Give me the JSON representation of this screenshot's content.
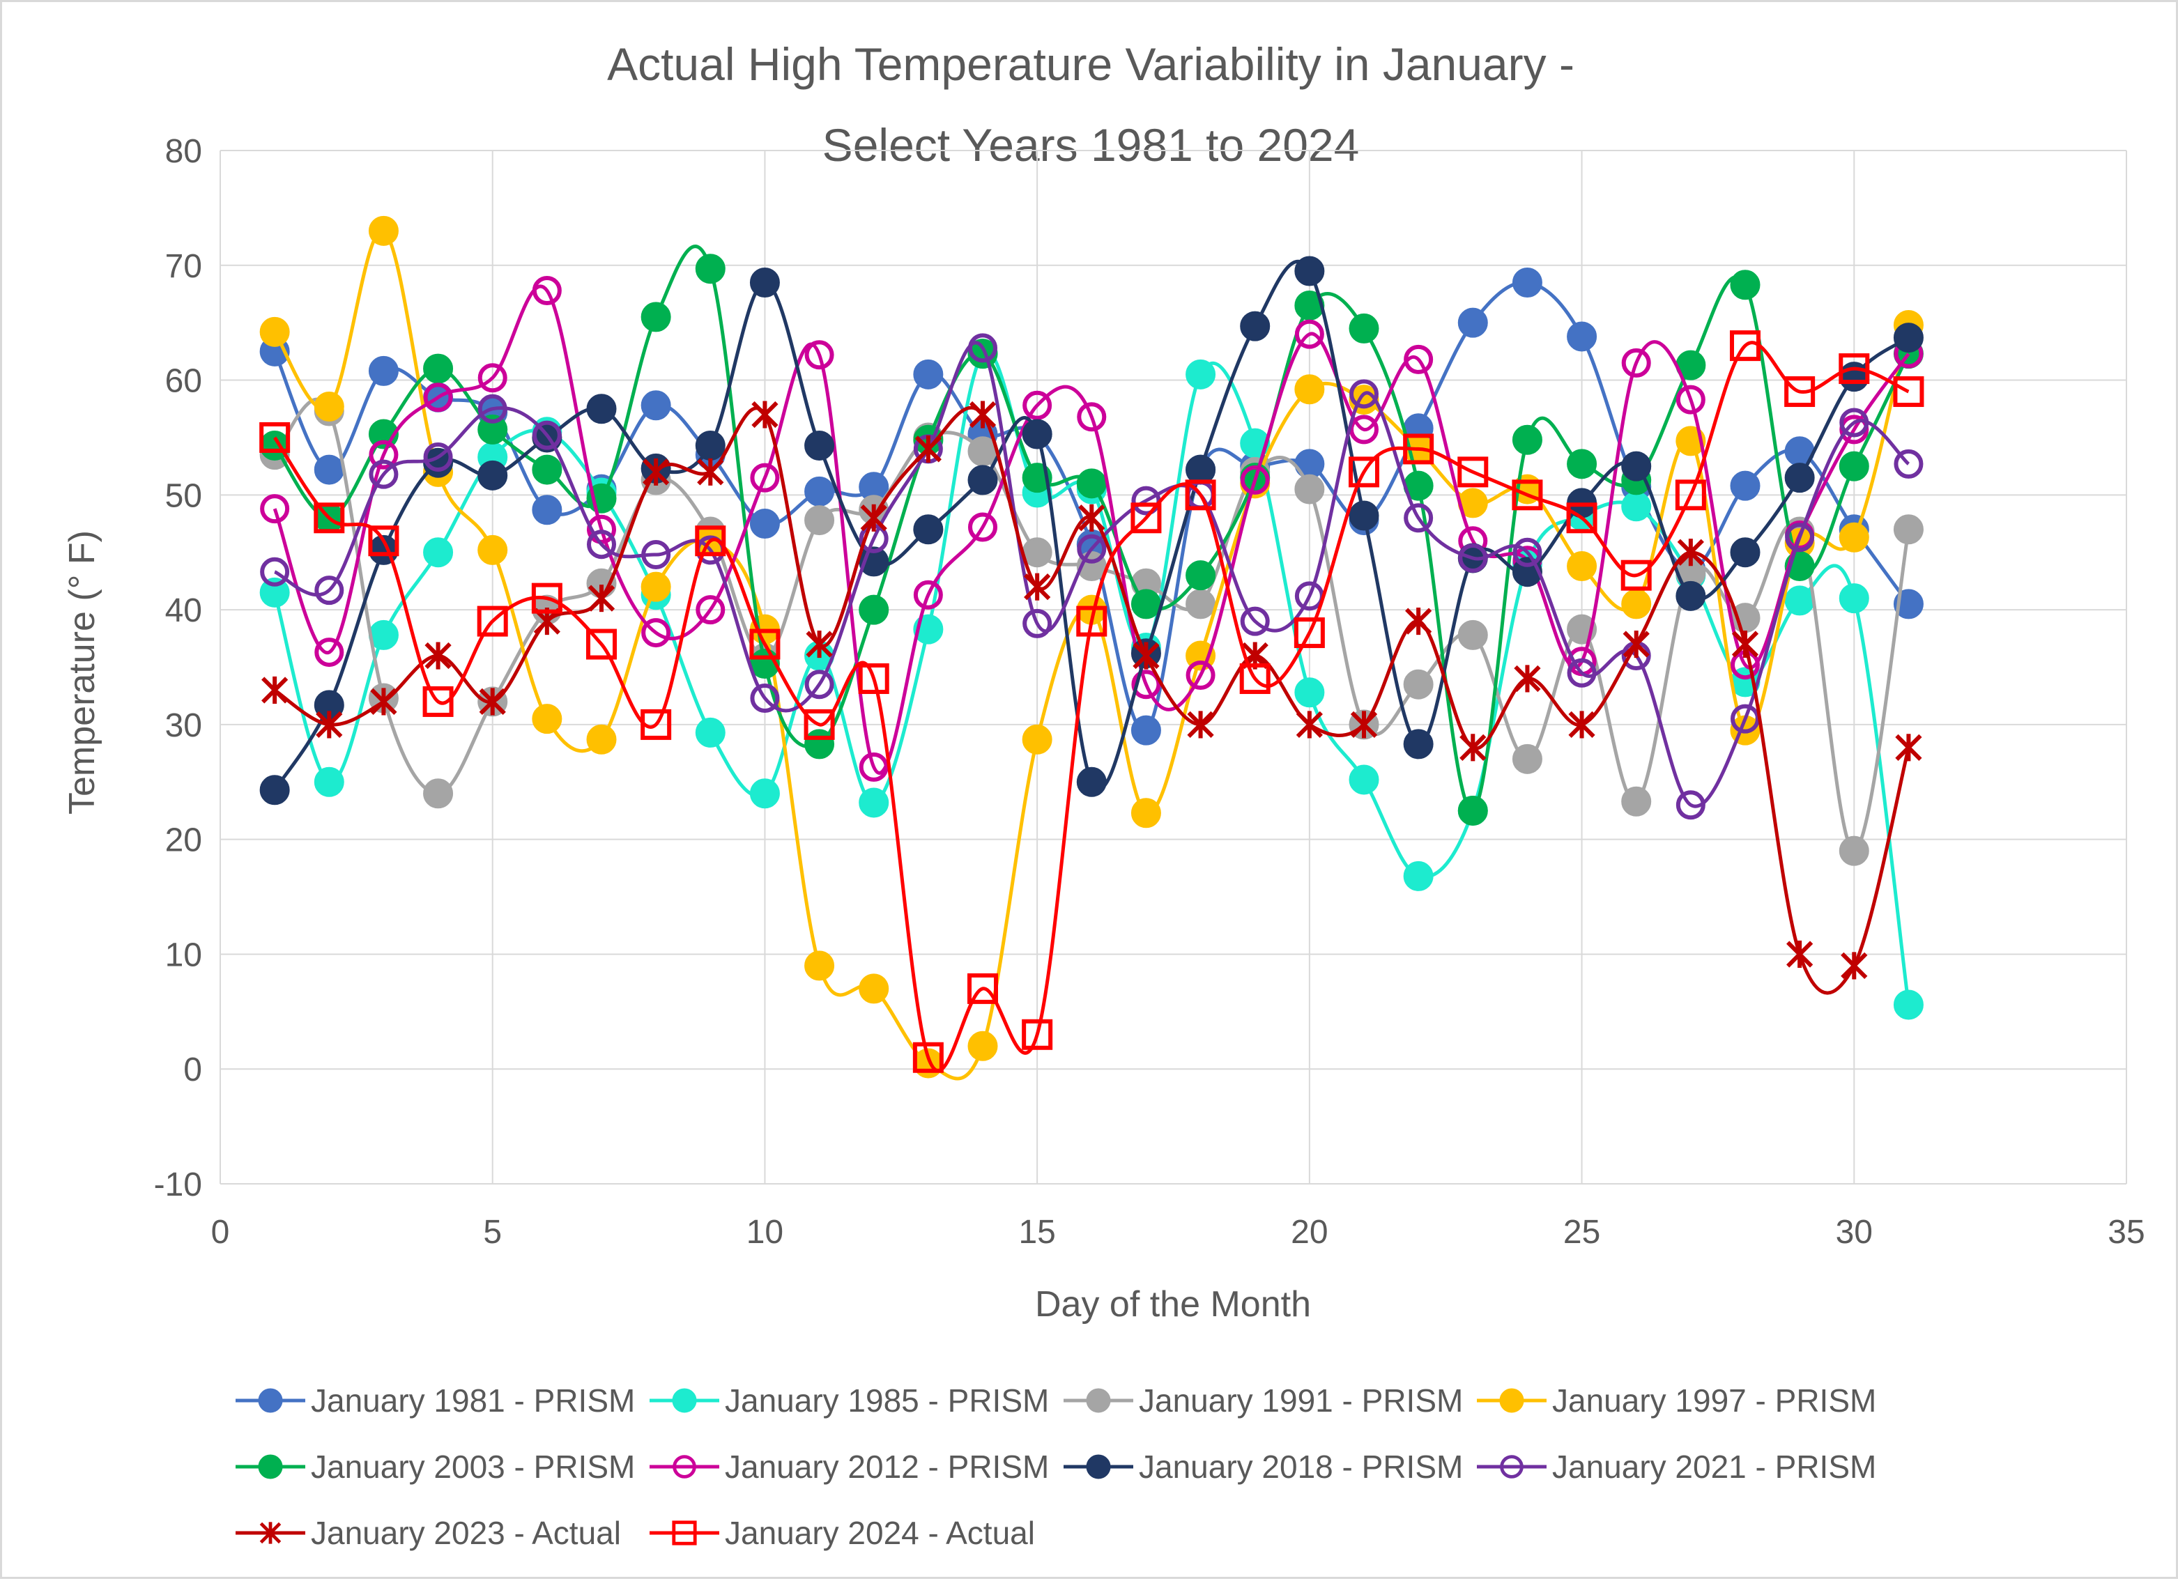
{
  "chart_data": {
    "type": "line",
    "title": "Actual High Temperature Variability in January -",
    "title_line2": "Select Years 1981 to 2024",
    "xlabel": "Day of the Month",
    "ylabel": "Temperature (° F)",
    "xlim": [
      0,
      35
    ],
    "ylim": [
      -10,
      80
    ],
    "xticks": [
      0,
      5,
      10,
      15,
      20,
      25,
      30,
      35
    ],
    "yticks": [
      -10,
      0,
      10,
      20,
      30,
      40,
      50,
      60,
      70,
      80
    ],
    "grid": true,
    "smooth": true,
    "legend_position": "bottom",
    "x": [
      1,
      2,
      3,
      4,
      5,
      6,
      7,
      8,
      9,
      10,
      11,
      12,
      13,
      14,
      15,
      16,
      17,
      18,
      19,
      20,
      21,
      22,
      23,
      24,
      25,
      26,
      27,
      28,
      29,
      30,
      31
    ],
    "series": [
      {
        "name": "January 1981 - PRISM",
        "color": "#4472C4",
        "marker": "circle",
        "values": [
          62.5,
          52.2,
          60.8,
          58.5,
          57.2,
          48.7,
          50.5,
          57.8,
          53.5,
          47.5,
          50.3,
          50.7,
          60.5,
          55.3,
          55.3,
          45.7,
          29.5,
          52.2,
          52.5,
          52.7,
          47.8,
          55.8,
          65.0,
          68.5,
          63.8,
          50.7,
          43.5,
          50.8,
          53.8,
          47.0,
          40.5
        ]
      },
      {
        "name": "January 1985 - PRISM",
        "color": "#1DEBCF",
        "marker": "circle",
        "values": [
          41.5,
          25.0,
          37.8,
          45.0,
          53.3,
          55.5,
          50.2,
          41.3,
          29.3,
          24.0,
          36.0,
          23.2,
          38.3,
          62.3,
          50.2,
          50.5,
          36.7,
          60.5,
          54.5,
          32.8,
          25.2,
          16.8,
          22.5,
          44.0,
          48.2,
          49.0,
          43.0,
          33.7,
          40.8,
          41.0,
          5.6
        ]
      },
      {
        "name": "January 1991 - PRISM",
        "color": "#A5A5A5",
        "marker": "circle",
        "values": [
          53.5,
          57.3,
          32.3,
          24.0,
          32.0,
          40.0,
          42.3,
          51.3,
          46.8,
          35.8,
          47.8,
          48.7,
          55.0,
          53.8,
          45.0,
          43.8,
          42.3,
          40.5,
          52.0,
          50.5,
          30.0,
          33.5,
          37.8,
          27.0,
          38.3,
          23.3,
          43.2,
          39.3,
          46.8,
          19.0,
          47.0
        ]
      },
      {
        "name": "January 1997 - PRISM",
        "color": "#FFC000",
        "marker": "circle",
        "values": [
          64.2,
          57.7,
          73.0,
          52.0,
          45.2,
          30.5,
          28.7,
          42.0,
          46.0,
          38.3,
          9.0,
          7.0,
          0.5,
          2.0,
          28.7,
          40.0,
          22.3,
          36.0,
          51.0,
          59.2,
          58.3,
          54.0,
          49.3,
          50.5,
          43.8,
          40.5,
          54.7,
          29.5,
          45.8,
          46.3,
          64.8
        ]
      },
      {
        "name": "January 2003 - PRISM",
        "color": "#00B050",
        "marker": "circle",
        "values": [
          54.3,
          48.0,
          55.3,
          61.0,
          55.7,
          52.2,
          49.7,
          65.5,
          69.7,
          35.3,
          28.3,
          40.0,
          54.8,
          62.3,
          51.5,
          51.0,
          40.5,
          43.0,
          51.5,
          66.5,
          64.5,
          50.8,
          22.5,
          54.8,
          52.7,
          51.3,
          61.3,
          68.3,
          43.8,
          52.5,
          62.3
        ]
      },
      {
        "name": "January 2012 - PRISM",
        "color": "#CC0099",
        "marker": "hollow-circle",
        "values": [
          48.8,
          36.3,
          53.5,
          58.5,
          60.2,
          67.8,
          47.0,
          38.0,
          40.0,
          51.5,
          62.2,
          26.3,
          41.3,
          47.2,
          57.8,
          56.8,
          33.5,
          34.3,
          51.3,
          64.0,
          55.7,
          61.8,
          46.0,
          44.3,
          35.5,
          61.5,
          58.3,
          35.2,
          46.5,
          55.7,
          62.3
        ]
      },
      {
        "name": "January 2018 - PRISM",
        "color": "#203864",
        "marker": "circle",
        "values": [
          24.3,
          31.7,
          45.2,
          52.8,
          51.7,
          55.0,
          57.5,
          52.3,
          54.3,
          68.5,
          54.3,
          44.2,
          47.0,
          51.3,
          55.3,
          25.0,
          36.2,
          52.2,
          64.7,
          69.5,
          48.2,
          28.3,
          44.5,
          43.3,
          49.3,
          52.5,
          41.2,
          45.0,
          51.5,
          60.3,
          63.7
        ]
      },
      {
        "name": "January 2021 - PRISM",
        "color": "#7030A0",
        "marker": "hollow-circle",
        "values": [
          43.3,
          41.7,
          51.8,
          53.3,
          57.5,
          55.2,
          45.7,
          44.8,
          45.2,
          32.3,
          33.5,
          46.2,
          54.0,
          62.8,
          38.8,
          45.3,
          49.5,
          50.0,
          39.0,
          41.2,
          58.8,
          48.0,
          44.5,
          45.0,
          34.5,
          36.0,
          23.0,
          30.5,
          46.3,
          56.3,
          52.7
        ]
      },
      {
        "name": "January 2023 - Actual",
        "color": "#C00000",
        "marker": "star",
        "values": [
          33,
          30,
          32,
          36,
          32,
          39,
          41,
          52,
          52,
          57,
          37,
          48,
          54,
          57,
          42,
          48,
          36,
          30,
          36,
          30,
          30,
          39,
          28,
          34,
          30,
          37,
          45,
          37,
          10,
          9,
          28
        ]
      },
      {
        "name": "January 2024 - Actual",
        "color": "#FF0000",
        "marker": "hollow-square",
        "values": [
          55,
          48,
          46,
          32,
          39,
          41,
          37,
          30,
          46,
          37,
          30,
          34,
          1,
          7,
          3,
          39,
          48,
          50,
          34,
          38,
          52,
          54,
          52,
          50,
          48,
          43,
          50,
          63,
          59,
          61,
          59
        ]
      }
    ]
  }
}
